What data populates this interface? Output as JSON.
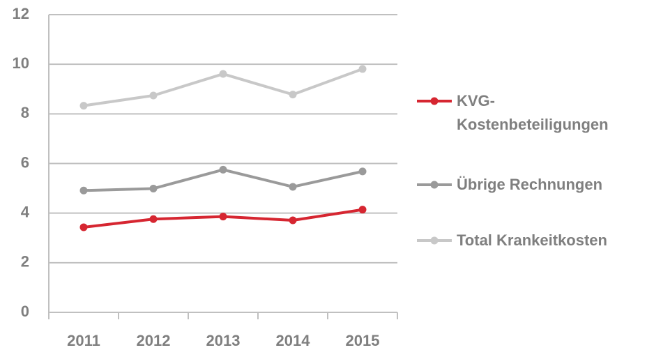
{
  "chart_data": {
    "type": "line",
    "categories": [
      "2011",
      "2012",
      "2013",
      "2014",
      "2015"
    ],
    "series": [
      {
        "name": "KVG-Kostenbeteiligungen",
        "color": "#d62631",
        "values": [
          3.43,
          3.76,
          3.86,
          3.71,
          4.14
        ]
      },
      {
        "name": "Übrige Rechnungen",
        "color": "#9a9a9a",
        "values": [
          4.91,
          4.99,
          5.75,
          5.06,
          5.68
        ]
      },
      {
        "name": "Total Krankeitkosten",
        "color": "#c8c8c8",
        "values": [
          8.33,
          8.74,
          9.61,
          8.78,
          9.81
        ]
      }
    ],
    "ylim": [
      0,
      12
    ],
    "yticks": [
      0,
      2,
      4,
      6,
      8,
      10,
      12
    ],
    "grid": true,
    "legend": "right"
  }
}
